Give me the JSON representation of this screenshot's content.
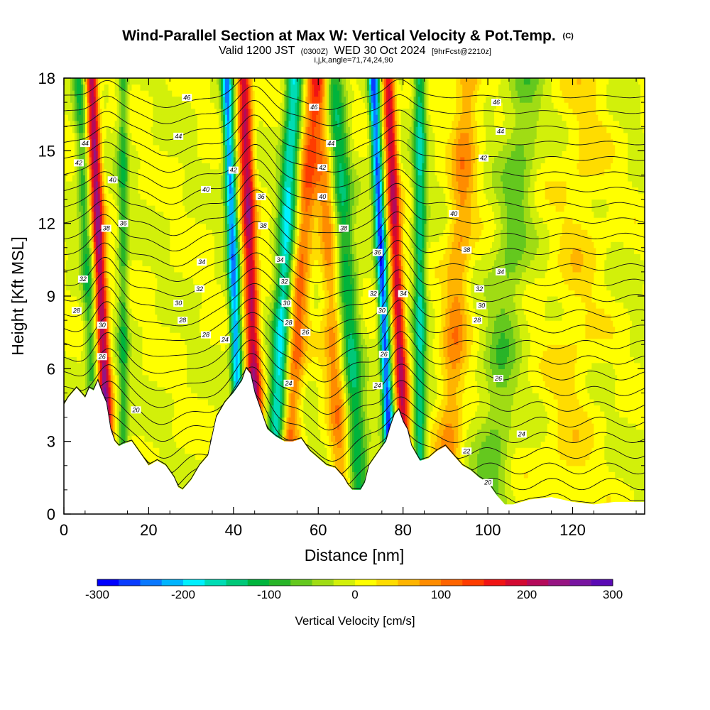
{
  "chart_data": {
    "type": "heatmap",
    "title": "Wind-Parallel Section at Max W: Vertical Velocity & Pot.Temp.",
    "title_mark": "(C)",
    "subtitle_parts": [
      "Valid 1200 JST",
      "(0300Z)",
      "WED 30 Oct 2024",
      "[9hrFcst@2210z]"
    ],
    "subtitle2": "i,j,k,angle=71,74,24,90",
    "xlabel": "Distance [nm]",
    "ylabel": "Height [Kft MSL]",
    "xlim": [
      0,
      137
    ],
    "ylim": [
      0,
      18
    ],
    "x_ticks": [
      "0",
      "20",
      "40",
      "60",
      "80",
      "100",
      "120"
    ],
    "x_tick_values": [
      0,
      20,
      40,
      60,
      80,
      100,
      120
    ],
    "y_ticks": [
      "0",
      "3",
      "6",
      "9",
      "12",
      "15",
      "18"
    ],
    "y_tick_values": [
      0,
      3,
      6,
      9,
      12,
      15,
      18
    ],
    "colorbar": {
      "label": "Vertical Velocity [cm/s]",
      "range": [
        -300,
        300
      ],
      "tick_labels": [
        "-300",
        "-200",
        "-100",
        "0",
        "100",
        "200",
        "300"
      ],
      "tick_values": [
        -300,
        -200,
        -100,
        0,
        100,
        200,
        300
      ],
      "colors": [
        "#0000ff",
        "#0a3cff",
        "#0a78ff",
        "#00b4ff",
        "#00f0ff",
        "#00dcb4",
        "#00c878",
        "#00b43c",
        "#28b428",
        "#64c81e",
        "#a0dc14",
        "#d2f00a",
        "#ffff00",
        "#ffdc00",
        "#ffb400",
        "#ff8c00",
        "#ff6400",
        "#ff3c00",
        "#f01414",
        "#d20a32",
        "#b40a5a",
        "#961482",
        "#7814a0",
        "#5a0ab4"
      ]
    },
    "terrain_profile": {
      "x": [
        0,
        1,
        2,
        3,
        4,
        5,
        6,
        7,
        8,
        9,
        10,
        11,
        12,
        13,
        14,
        16,
        18,
        20,
        22,
        24,
        26,
        27,
        28,
        30,
        32,
        34,
        36,
        38,
        40,
        42,
        43,
        44,
        45,
        46,
        47,
        48,
        50,
        52,
        54,
        56,
        58,
        60,
        62,
        64,
        66,
        67,
        68,
        70,
        71,
        72,
        74,
        76,
        77,
        78,
        79,
        80,
        81,
        82,
        84,
        86,
        88,
        90,
        92,
        94,
        96,
        98,
        100,
        102,
        104,
        106,
        110,
        115,
        120,
        125,
        130,
        137
      ],
      "y": [
        4.5,
        4.8,
        5.0,
        5.2,
        5.0,
        4.8,
        5.2,
        5.1,
        5.5,
        5.0,
        4.6,
        3.5,
        3.0,
        2.8,
        2.9,
        3.0,
        2.5,
        2.0,
        2.2,
        2.0,
        1.5,
        1.1,
        1.0,
        1.4,
        2.0,
        2.4,
        4.0,
        4.6,
        5.0,
        5.5,
        6.0,
        5.8,
        5.0,
        4.5,
        4.0,
        3.5,
        3.2,
        3.0,
        3.0,
        3.1,
        2.6,
        2.3,
        2.0,
        1.9,
        1.5,
        1.2,
        1.0,
        1.0,
        1.3,
        2.0,
        2.5,
        3.0,
        3.6,
        4.1,
        4.3,
        3.8,
        3.5,
        2.8,
        2.2,
        2.3,
        2.6,
        2.8,
        2.4,
        2.0,
        1.8,
        1.5,
        1.3,
        0.8,
        0.4,
        0.4,
        0.6,
        0.7,
        0.5,
        0.4,
        0.5,
        0.5
      ]
    },
    "vertical_velocity_bands": [
      {
        "center_x": 11.0,
        "tilt_nm_per_kft": -0.25,
        "amplitude_cms": 230,
        "width_nm": 1.4
      },
      {
        "center_x": 8.0,
        "tilt_nm_per_kft": -0.25,
        "amplitude_cms": -90,
        "width_nm": 1.4
      },
      {
        "center_x": 14.0,
        "tilt_nm_per_kft": 0.0,
        "amplitude_cms": -90,
        "width_nm": 1.2
      },
      {
        "center_x": 46.0,
        "tilt_nm_per_kft": -0.2,
        "amplitude_cms": 210,
        "width_nm": 1.6
      },
      {
        "center_x": 42.0,
        "tilt_nm_per_kft": -0.2,
        "amplitude_cms": -230,
        "width_nm": 1.3
      },
      {
        "center_x": 49.0,
        "tilt_nm_per_kft": 0.3,
        "amplitude_cms": -180,
        "width_nm": 2.0
      },
      {
        "center_x": 52.0,
        "tilt_nm_per_kft": 0.4,
        "amplitude_cms": 110,
        "width_nm": 2.2
      },
      {
        "center_x": 70.0,
        "tilt_nm_per_kft": -0.35,
        "amplitude_cms": -130,
        "width_nm": 2.4
      },
      {
        "center_x": 66.0,
        "tilt_nm_per_kft": -0.3,
        "amplitude_cms": 90,
        "width_nm": 2.5
      },
      {
        "center_x": 81.0,
        "tilt_nm_per_kft": -0.25,
        "amplitude_cms": 200,
        "width_nm": 1.4
      },
      {
        "center_x": 77.5,
        "tilt_nm_per_kft": -0.25,
        "amplitude_cms": -260,
        "width_nm": 1.2
      },
      {
        "center_x": 84.0,
        "tilt_nm_per_kft": 0.0,
        "amplitude_cms": -150,
        "width_nm": 1.4
      },
      {
        "center_x": 90.0,
        "tilt_nm_per_kft": 0.3,
        "amplitude_cms": 80,
        "width_nm": 3.0
      },
      {
        "center_x": 100.0,
        "tilt_nm_per_kft": 0.5,
        "amplitude_cms": -60,
        "width_nm": 4.0
      },
      {
        "center_x": 118.0,
        "tilt_nm_per_kft": 0.3,
        "amplitude_cms": 30,
        "width_nm": 6.0
      }
    ],
    "theta_contour_labels": [
      {
        "value": "46",
        "x": 29.0,
        "y": 17.2
      },
      {
        "value": "46",
        "x": 59.0,
        "y": 16.8
      },
      {
        "value": "46",
        "x": 102.0,
        "y": 17.0
      },
      {
        "value": "44",
        "x": 5.0,
        "y": 15.3
      },
      {
        "value": "44",
        "x": 27.0,
        "y": 15.6
      },
      {
        "value": "44",
        "x": 63.0,
        "y": 15.3
      },
      {
        "value": "44",
        "x": 103.0,
        "y": 15.8
      },
      {
        "value": "42",
        "x": 3.5,
        "y": 14.5
      },
      {
        "value": "42",
        "x": 40.0,
        "y": 14.2
      },
      {
        "value": "42",
        "x": 61.0,
        "y": 14.3
      },
      {
        "value": "42",
        "x": 99.0,
        "y": 14.7
      },
      {
        "value": "40",
        "x": 11.5,
        "y": 13.8
      },
      {
        "value": "40",
        "x": 33.5,
        "y": 13.4
      },
      {
        "value": "40",
        "x": 61.0,
        "y": 13.1
      },
      {
        "value": "40",
        "x": 92.0,
        "y": 12.4
      },
      {
        "value": "38",
        "x": 10.0,
        "y": 11.8
      },
      {
        "value": "38",
        "x": 47.0,
        "y": 11.9
      },
      {
        "value": "38",
        "x": 66.0,
        "y": 11.8
      },
      {
        "value": "38",
        "x": 95.0,
        "y": 10.9
      },
      {
        "value": "36",
        "x": 14.0,
        "y": 12.0
      },
      {
        "value": "36",
        "x": 46.5,
        "y": 13.1
      },
      {
        "value": "36",
        "x": 74.0,
        "y": 10.8
      },
      {
        "value": "34",
        "x": 32.5,
        "y": 10.4
      },
      {
        "value": "34",
        "x": 51.0,
        "y": 10.5
      },
      {
        "value": "34",
        "x": 80.0,
        "y": 9.1
      },
      {
        "value": "34",
        "x": 103.0,
        "y": 10.0
      },
      {
        "value": "32",
        "x": 4.5,
        "y": 9.7
      },
      {
        "value": "32",
        "x": 32.0,
        "y": 9.3
      },
      {
        "value": "32",
        "x": 52.0,
        "y": 9.6
      },
      {
        "value": "32",
        "x": 73.0,
        "y": 9.1
      },
      {
        "value": "32",
        "x": 98.0,
        "y": 9.3
      },
      {
        "value": "30",
        "x": 27.0,
        "y": 8.7
      },
      {
        "value": "30",
        "x": 9.0,
        "y": 7.8
      },
      {
        "value": "30",
        "x": 52.5,
        "y": 8.7
      },
      {
        "value": "30",
        "x": 75.0,
        "y": 8.4
      },
      {
        "value": "30",
        "x": 98.5,
        "y": 8.6
      },
      {
        "value": "28",
        "x": 3.0,
        "y": 8.4
      },
      {
        "value": "28",
        "x": 28.0,
        "y": 8.0
      },
      {
        "value": "28",
        "x": 33.5,
        "y": 7.4
      },
      {
        "value": "28",
        "x": 53.0,
        "y": 7.9
      },
      {
        "value": "28",
        "x": 97.5,
        "y": 8.0
      },
      {
        "value": "26",
        "x": 9.0,
        "y": 6.5
      },
      {
        "value": "26",
        "x": 57.0,
        "y": 7.5
      },
      {
        "value": "26",
        "x": 75.5,
        "y": 6.6
      },
      {
        "value": "26",
        "x": 102.5,
        "y": 5.6
      },
      {
        "value": "24",
        "x": 38.0,
        "y": 7.2
      },
      {
        "value": "24",
        "x": 53.0,
        "y": 5.4
      },
      {
        "value": "24",
        "x": 74.0,
        "y": 5.3
      },
      {
        "value": "24",
        "x": 108.0,
        "y": 3.3
      },
      {
        "value": "22",
        "x": 95.0,
        "y": 2.6
      },
      {
        "value": "20",
        "x": 17.0,
        "y": 4.3
      },
      {
        "value": "20",
        "x": 100.0,
        "y": 1.3
      }
    ]
  }
}
